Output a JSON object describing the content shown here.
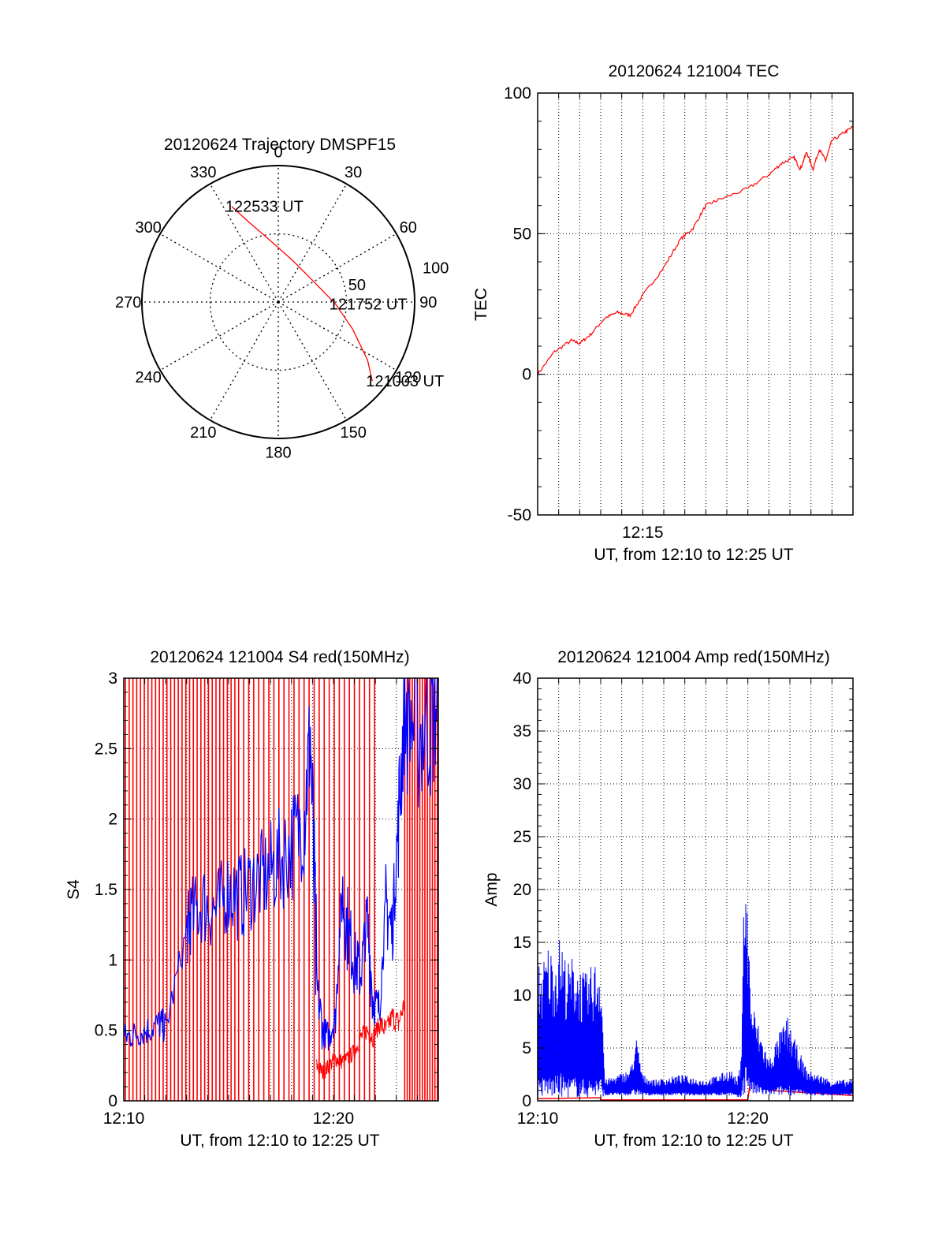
{
  "chart_data": [
    {
      "type": "polar",
      "title": "20120624 Trajectory DMSPF15",
      "angle_labels": [
        "0",
        "30",
        "60",
        "90",
        "120",
        "150",
        "180",
        "210",
        "240",
        "270",
        "300",
        "330"
      ],
      "radius_labels": [
        "50",
        "100"
      ],
      "radius_max": 100,
      "grid": true,
      "series": [
        {
          "color": "#ff0000",
          "points": [
            {
              "az": 334,
              "r": 78
            },
            {
              "az": 340,
              "r": 62
            },
            {
              "az": 352,
              "r": 46
            },
            {
              "az": 20,
              "r": 32
            },
            {
              "az": 60,
              "r": 30
            },
            {
              "az": 92,
              "r": 42
            },
            {
              "az": 110,
              "r": 58
            },
            {
              "az": 123,
              "r": 78
            },
            {
              "az": 130,
              "r": 90
            }
          ]
        }
      ],
      "annotations": [
        {
          "text": "122533 UT",
          "az": 334,
          "r": 78
        },
        {
          "text": "121752 UT",
          "az": 92,
          "r": 42
        },
        {
          "text": "121003 UT",
          "az": 130,
          "r": 90
        }
      ]
    },
    {
      "type": "line",
      "title": "20120624 121004 TEC",
      "xlabel": "UT, from 12:10 to 12:25 UT",
      "ylabel": "TEC",
      "xlim": [
        12.1667,
        12.4167
      ],
      "ylim": [
        -50,
        100
      ],
      "xticks": [
        {
          "value": 12.25,
          "label": "12:15"
        }
      ],
      "yticks": [
        {
          "value": -50,
          "label": "-50"
        },
        {
          "value": 0,
          "label": "0"
        },
        {
          "value": 50,
          "label": "50"
        },
        {
          "value": 100,
          "label": "100"
        }
      ],
      "grid": true,
      "series": [
        {
          "color": "#ff0000",
          "x": [
            12.1667,
            12.18,
            12.1933,
            12.2,
            12.2083,
            12.22,
            12.23,
            12.24,
            12.25,
            12.2667,
            12.28,
            12.29,
            12.3,
            12.31,
            12.3333,
            12.35,
            12.36,
            12.37,
            12.375,
            12.38,
            12.385,
            12.39,
            12.395,
            12.4,
            12.41,
            12.4167
          ],
          "y": [
            0,
            8,
            12,
            11,
            14,
            20,
            22,
            21,
            28,
            38,
            48,
            52,
            60,
            62,
            66,
            71,
            75,
            77,
            73,
            79,
            73,
            80,
            76,
            83,
            86,
            88
          ]
        }
      ]
    },
    {
      "type": "line",
      "title": "20120624 121004 S4 red(150MHz)",
      "xlabel": "UT, from 12:10 to 12:25 UT",
      "ylabel": "S4",
      "xlim": [
        12.1667,
        12.4167
      ],
      "ylim": [
        0,
        3
      ],
      "xticks": [
        {
          "value": 12.1667,
          "label": "12:10"
        },
        {
          "value": 12.3333,
          "label": "12:20"
        }
      ],
      "yticks": [
        {
          "value": 0,
          "label": "0"
        },
        {
          "value": 0.5,
          "label": "0.5"
        },
        {
          "value": 1,
          "label": "1"
        },
        {
          "value": 1.5,
          "label": "1.5"
        },
        {
          "value": 2,
          "label": "2"
        },
        {
          "value": 2.5,
          "label": "2.5"
        },
        {
          "value": 3,
          "label": "3"
        }
      ],
      "grid": true,
      "series": [
        {
          "color": "#ff0000",
          "spikes_x": [
            12.168,
            12.171,
            12.174,
            12.177,
            12.18,
            12.183,
            12.186,
            12.189,
            12.192,
            12.195,
            12.198,
            12.201,
            12.204,
            12.207,
            12.21,
            12.213,
            12.216,
            12.219,
            12.222,
            12.225,
            12.228,
            12.231,
            12.234,
            12.237,
            12.24,
            12.243,
            12.246,
            12.249,
            12.252,
            12.255,
            12.258,
            12.262,
            12.266,
            12.27,
            12.274,
            12.278,
            12.282,
            12.286,
            12.29,
            12.294,
            12.298,
            12.302,
            12.306,
            12.31,
            12.314,
            12.318,
            12.322,
            12.326,
            12.33,
            12.334,
            12.338,
            12.342,
            12.346,
            12.35,
            12.354,
            12.358,
            12.362,
            12.366,
            12.39,
            12.392,
            12.394,
            12.396,
            12.398,
            12.4,
            12.402,
            12.404,
            12.406,
            12.408,
            12.41,
            12.412,
            12.414,
            12.416
          ],
          "x": [
            12.32,
            12.325,
            12.33,
            12.335,
            12.34,
            12.345,
            12.35,
            12.355,
            12.36,
            12.365,
            12.37,
            12.375,
            12.38,
            12.385,
            12.39
          ],
          "y": [
            0.25,
            0.2,
            0.25,
            0.3,
            0.28,
            0.3,
            0.35,
            0.45,
            0.5,
            0.45,
            0.55,
            0.5,
            0.6,
            0.55,
            0.7
          ]
        },
        {
          "color": "#0000ff",
          "x": [
            12.1667,
            12.175,
            12.185,
            12.195,
            12.2,
            12.2167,
            12.22,
            12.23,
            12.24,
            12.25,
            12.26,
            12.27,
            12.28,
            12.29,
            12.3,
            12.31,
            12.315,
            12.32,
            12.325,
            12.33,
            12.335,
            12.34,
            12.345,
            12.35,
            12.355,
            12.36,
            12.365,
            12.37,
            12.375,
            12.38,
            12.385,
            12.39,
            12.4,
            12.41,
            12.4167
          ],
          "y": [
            0.45,
            0.47,
            0.5,
            0.55,
            0.52,
            1.2,
            1.3,
            1.4,
            1.35,
            1.5,
            1.45,
            1.55,
            1.6,
            1.7,
            1.8,
            2.0,
            2.6,
            0.8,
            0.5,
            0.45,
            0.6,
            1.5,
            1.2,
            1.0,
            0.9,
            1.3,
            0.7,
            0.65,
            1.4,
            1.2,
            2.0,
            2.8,
            2.6,
            2.7,
            2.9
          ]
        }
      ]
    },
    {
      "type": "line",
      "title": "20120624 121004 Amp red(150MHz)",
      "xlabel": "UT, from 12:10 to 12:25 UT",
      "ylabel": "Amp",
      "xlim": [
        12.1667,
        12.4167
      ],
      "ylim": [
        0,
        40
      ],
      "xticks": [
        {
          "value": 12.1667,
          "label": "12:10"
        },
        {
          "value": 12.3333,
          "label": "12:20"
        }
      ],
      "yticks": [
        {
          "value": 0,
          "label": "0"
        },
        {
          "value": 5,
          "label": "5"
        },
        {
          "value": 10,
          "label": "10"
        },
        {
          "value": 15,
          "label": "15"
        },
        {
          "value": 20,
          "label": "20"
        },
        {
          "value": 25,
          "label": "25"
        },
        {
          "value": 30,
          "label": "30"
        },
        {
          "value": 35,
          "label": "35"
        },
        {
          "value": 40,
          "label": "40"
        }
      ],
      "grid": true,
      "series": [
        {
          "color": "#ff0000",
          "x": [
            12.1667,
            12.2167,
            12.2167,
            12.3333,
            12.3367,
            12.34,
            12.345,
            12.35,
            12.4167
          ],
          "y": [
            0.2,
            0.3,
            0.1,
            0.1,
            3,
            4,
            3,
            1,
            0.5
          ]
        },
        {
          "color": "#0000ff",
          "envelope_x": [
            12.1667,
            12.17,
            12.175,
            12.18,
            12.185,
            12.19,
            12.195,
            12.2,
            12.205,
            12.21,
            12.2167,
            12.22,
            12.23,
            12.24,
            12.245,
            12.25,
            12.26,
            12.28,
            12.3,
            12.32,
            12.325,
            12.328,
            12.33,
            12.333,
            12.336,
            12.34,
            12.345,
            12.35,
            12.36,
            12.365,
            12.37,
            12.38,
            12.4,
            12.4167
          ],
          "envelope_max": [
            14,
            13,
            15,
            14,
            16,
            13,
            14,
            13,
            12,
            13,
            14,
            2,
            2.5,
            3,
            6,
            2.5,
            2,
            2.5,
            2,
            3,
            2,
            4,
            22,
            19,
            10,
            8,
            6,
            4,
            7,
            8,
            6,
            3,
            2,
            2
          ],
          "envelope_min": [
            0.3,
            0.3,
            0.3,
            0.3,
            0.3,
            0.3,
            0.3,
            0.3,
            0.3,
            0.3,
            0.3,
            0.5,
            0.5,
            0.5,
            0.5,
            0.5,
            0.5,
            0.5,
            0.5,
            0.5,
            0.3,
            0.2,
            0.5,
            1,
            0.5,
            0.5,
            0.5,
            0.5,
            0.5,
            0.5,
            0.5,
            0.5,
            0.5,
            0.5
          ]
        }
      ]
    }
  ]
}
